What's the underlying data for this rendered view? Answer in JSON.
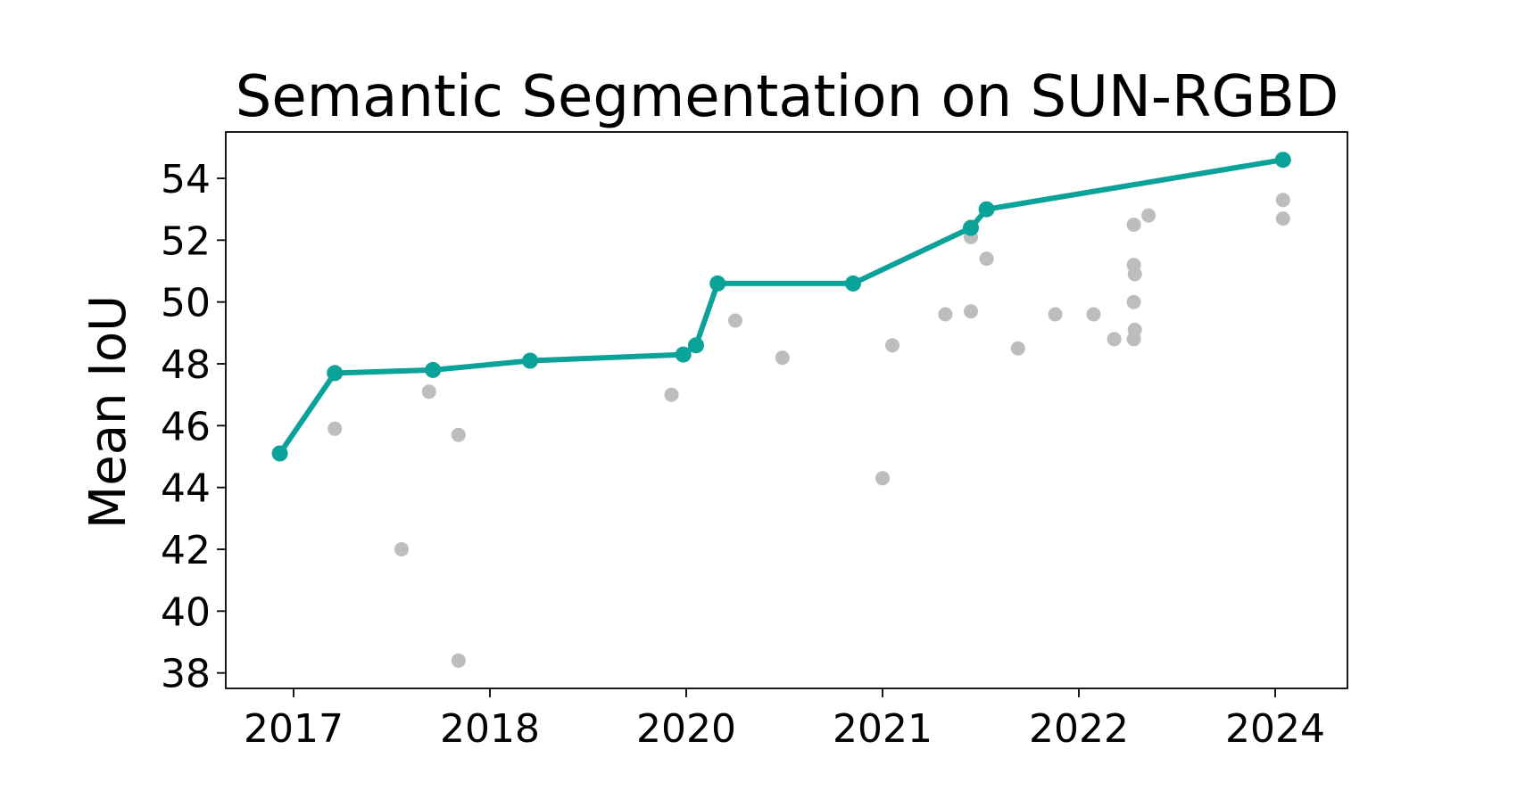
{
  "chart_data": {
    "type": "scatter",
    "title": "Semantic Segmentation on SUN-RGBD",
    "xlabel": "",
    "ylabel": "Mean IoU",
    "x_tick_labels": [
      "2017",
      "2018",
      "2020",
      "2021",
      "2022",
      "2024"
    ],
    "y_ticks": [
      38,
      40,
      42,
      44,
      46,
      48,
      50,
      52,
      54
    ],
    "ylim": [
      37.5,
      55.5
    ],
    "grid": false,
    "colors": {
      "sota_line": "#0ba29a",
      "other_points": "#bdbdbd",
      "axes": "#000000"
    },
    "series": [
      {
        "role": "state-of-the-art",
        "points": [
          {
            "x": 2016.93,
            "y": 45.1
          },
          {
            "x": 2017.21,
            "y": 47.7
          },
          {
            "x": 2017.71,
            "y": 47.8
          },
          {
            "x": 2018.41,
            "y": 48.1
          },
          {
            "x": 2019.97,
            "y": 48.3
          },
          {
            "x": 2020.05,
            "y": 48.6
          },
          {
            "x": 2020.16,
            "y": 50.6
          },
          {
            "x": 2020.85,
            "y": 50.6
          },
          {
            "x": 2021.45,
            "y": 52.4
          },
          {
            "x": 2021.53,
            "y": 53.0
          },
          {
            "x": 2024.08,
            "y": 54.6
          }
        ]
      },
      {
        "role": "other",
        "points": [
          {
            "x": 2017.21,
            "y": 45.9
          },
          {
            "x": 2017.55,
            "y": 42.0
          },
          {
            "x": 2017.69,
            "y": 47.1
          },
          {
            "x": 2017.84,
            "y": 45.7
          },
          {
            "x": 2017.84,
            "y": 38.4
          },
          {
            "x": 2019.85,
            "y": 47.0
          },
          {
            "x": 2020.25,
            "y": 49.4
          },
          {
            "x": 2020.49,
            "y": 48.2
          },
          {
            "x": 2021.0,
            "y": 44.3
          },
          {
            "x": 2021.05,
            "y": 48.6
          },
          {
            "x": 2021.32,
            "y": 49.6
          },
          {
            "x": 2021.45,
            "y": 49.7
          },
          {
            "x": 2021.45,
            "y": 52.1
          },
          {
            "x": 2021.53,
            "y": 51.4
          },
          {
            "x": 2021.69,
            "y": 48.5
          },
          {
            "x": 2021.88,
            "y": 49.6
          },
          {
            "x": 2022.15,
            "y": 49.6
          },
          {
            "x": 2022.36,
            "y": 48.8
          },
          {
            "x": 2022.56,
            "y": 52.5
          },
          {
            "x": 2022.56,
            "y": 51.2
          },
          {
            "x": 2022.57,
            "y": 50.9
          },
          {
            "x": 2022.56,
            "y": 50.0
          },
          {
            "x": 2022.57,
            "y": 49.1
          },
          {
            "x": 2022.56,
            "y": 48.8
          },
          {
            "x": 2022.71,
            "y": 52.8
          },
          {
            "x": 2024.08,
            "y": 53.3
          },
          {
            "x": 2024.08,
            "y": 52.7
          }
        ]
      }
    ]
  }
}
